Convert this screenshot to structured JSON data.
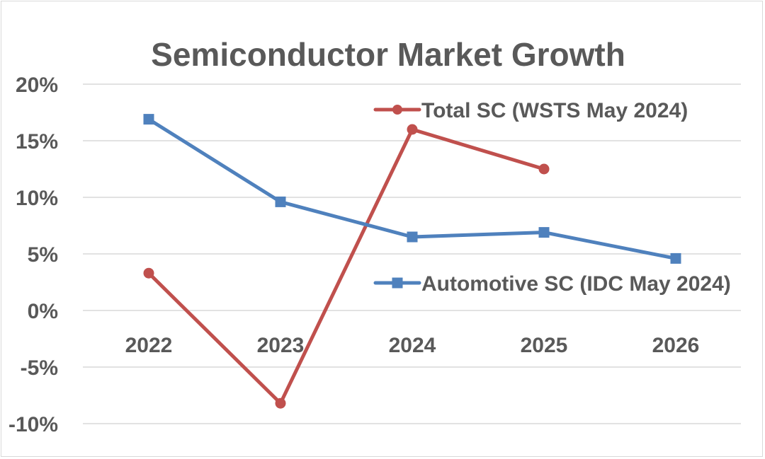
{
  "chart_data": {
    "type": "line",
    "title": "Semiconductor Market Growth",
    "xlabel": "",
    "ylabel": "",
    "categories": [
      "2022",
      "2023",
      "2024",
      "2025",
      "2026"
    ],
    "ylim": [
      -10,
      20
    ],
    "yticks": [
      20,
      15,
      10,
      5,
      0,
      -5,
      -10
    ],
    "ytick_labels": [
      "20%",
      "15%",
      "10%",
      "5%",
      "0%",
      "-5%",
      "-10%"
    ],
    "grid": true,
    "legend_position": "right",
    "series": [
      {
        "name": "Total SC (WSTS May 2024)",
        "color": "#c0504d",
        "marker": "circle",
        "values": [
          3.3,
          -8.2,
          16.0,
          12.5,
          null
        ]
      },
      {
        "name": "Automotive SC (IDC May 2024)",
        "color": "#4f81bd",
        "marker": "square",
        "values": [
          16.9,
          9.6,
          6.5,
          6.9,
          4.6
        ]
      }
    ]
  }
}
